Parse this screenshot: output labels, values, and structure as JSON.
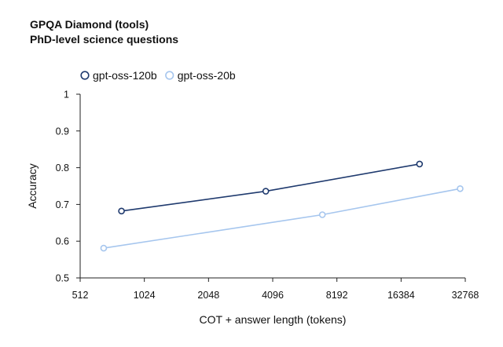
{
  "title": "GPQA Diamond (tools)",
  "subtitle": "PhD-level science questions",
  "chart_data": {
    "type": "line",
    "title": "GPQA Diamond (tools)",
    "subtitle": "PhD-level science questions",
    "xlabel": "COT + answer length (tokens)",
    "ylabel": "Accuracy",
    "xscale": "log2",
    "xlim": [
      512,
      32768
    ],
    "ylim": [
      0.5,
      1.0
    ],
    "xticks": [
      512,
      1024,
      2048,
      4096,
      8192,
      16384,
      32768
    ],
    "xtick_labels": [
      "512",
      "1024",
      "2048",
      "4096",
      "8192",
      "16384",
      "32768"
    ],
    "yticks": [
      0.5,
      0.6,
      0.7,
      0.8,
      0.9,
      1.0
    ],
    "ytick_labels": [
      "0.5",
      "0.6",
      "0.7",
      "0.8",
      "0.9",
      "1"
    ],
    "grid": false,
    "legend_position": "top-left",
    "series": [
      {
        "name": "gpt-oss-120b",
        "color": "#1f3a6e",
        "x": [
          800,
          3800,
          20000
        ],
        "y": [
          0.682,
          0.736,
          0.81
        ]
      },
      {
        "name": "gpt-oss-20b",
        "color": "#a6c6ee",
        "x": [
          660,
          7000,
          31000
        ],
        "y": [
          0.581,
          0.672,
          0.743
        ]
      }
    ]
  }
}
